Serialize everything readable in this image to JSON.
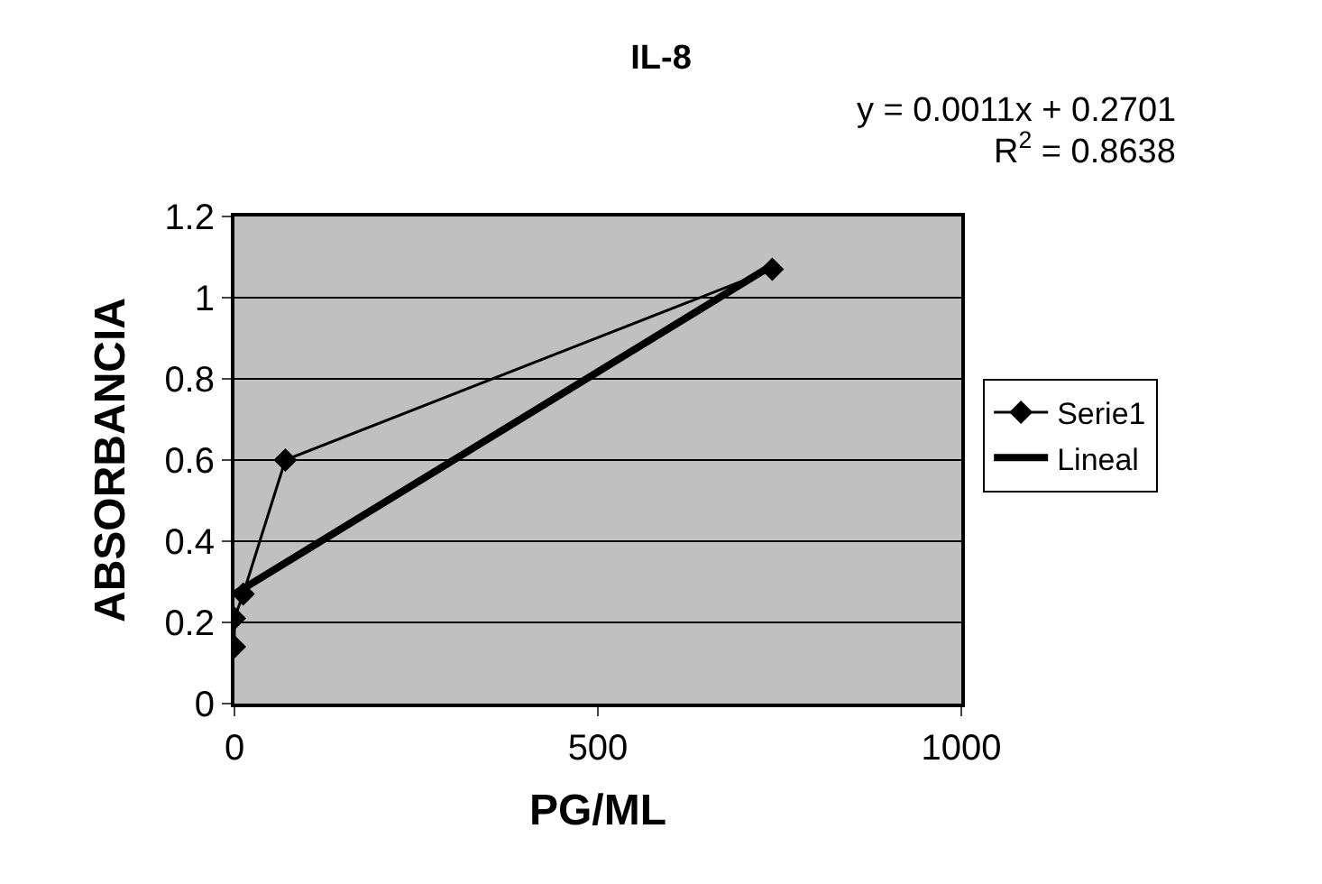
{
  "chart_data": {
    "type": "line",
    "title": "IL-8",
    "xlabel": "PG/ML",
    "ylabel": "ABSORBANCIA",
    "annotations": [
      "y = 0.0011x + 0.2701",
      "R$^{2}$ = 0.8638"
    ],
    "series": [
      {
        "name": "Serie1",
        "color": "#000000",
        "x": [
          0,
          0,
          12,
          70,
          740
        ],
        "values": [
          0.14,
          0.21,
          0.27,
          0.6,
          1.07
        ],
        "marker": "diamond"
      },
      {
        "name": "Lineal",
        "type": "line",
        "color": "#000000",
        "x": [
          0,
          740
        ],
        "values": [
          0.27,
          1.08
        ],
        "marker": "none"
      }
    ],
    "xlim": [
      0,
      1000
    ],
    "xticks": [
      0,
      500,
      1000
    ],
    "ylim": [
      0,
      1.2
    ],
    "yticks": [
      0,
      0.2,
      0.4,
      0.6,
      0.8,
      1,
      1.2
    ],
    "grid": "y",
    "legend": "right"
  }
}
